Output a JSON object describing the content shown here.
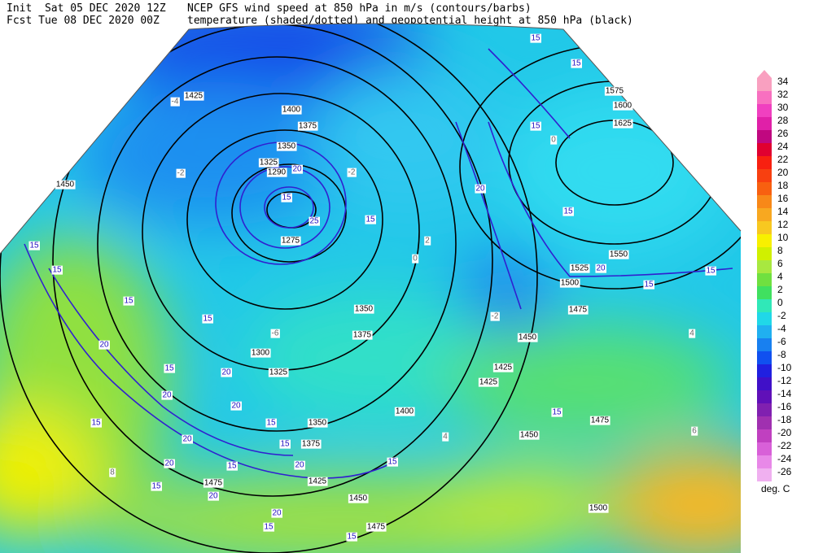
{
  "header": {
    "init": "Init  Sat 05 DEC 2020 12Z",
    "fcst": "Fcst Tue 08 DEC 2020 00Z",
    "title1": "NCEP GFS wind speed at 850 hPa in m/s (contours/barbs)",
    "title2": "temperature (shaded/dotted) and geopotential height at 850 hPa (black)"
  },
  "colorbar": {
    "labels": [
      34,
      32,
      30,
      28,
      26,
      24,
      22,
      20,
      18,
      16,
      14,
      12,
      10,
      8,
      6,
      4,
      2,
      0,
      -2,
      -4,
      -6,
      -8,
      -10,
      -12,
      -14,
      -16,
      -18,
      -20,
      -22,
      -24,
      -26
    ],
    "colors": [
      "#f9a0c0",
      "#f870c0",
      "#f040c0",
      "#e020a8",
      "#c00880",
      "#e00030",
      "#f82010",
      "#f84010",
      "#f86010",
      "#f88818",
      "#f8a820",
      "#f8c820",
      "#f8f000",
      "#d0f000",
      "#a8e840",
      "#70e040",
      "#40e060",
      "#30e8b8",
      "#20d8e8",
      "#20b0f0",
      "#1880f0",
      "#1050f0",
      "#2020e0",
      "#4010c8",
      "#6010b8",
      "#8020b0",
      "#a030b0",
      "#c040c0",
      "#d860d8",
      "#e888e8",
      "#f0b0f0"
    ],
    "unit": "deg. C"
  },
  "labels": {
    "height": [
      1450,
      1425,
      1400,
      1375,
      1350,
      1325,
      1290,
      1275,
      1575,
      1600,
      1625,
      1550,
      1525,
      1500,
      1475,
      1450,
      1425,
      1425,
      1350,
      1375,
      1300,
      1325,
      1350,
      1375,
      1400,
      1425,
      1450,
      1475,
      1450,
      1475,
      1500,
      1475
    ],
    "wind": [
      15,
      15,
      15,
      20,
      15,
      20,
      15,
      15,
      15,
      15,
      20,
      25,
      15,
      15,
      15,
      15,
      20,
      15,
      20,
      20,
      20,
      15,
      15,
      20,
      15,
      20,
      15,
      20,
      15,
      15,
      20,
      20,
      15,
      15,
      15
    ],
    "temperature": [
      -4,
      -2,
      0,
      -2,
      4,
      6,
      8,
      4,
      -6,
      0,
      2,
      -2
    ]
  }
}
